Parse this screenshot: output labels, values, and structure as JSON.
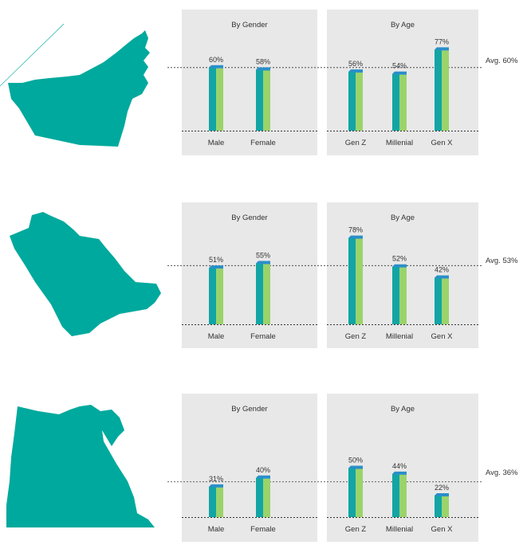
{
  "colors": {
    "panel_bg": "#e8e8e8",
    "bar_dark": "#12a5a5",
    "bar_light": "#9bd36b",
    "bar_top": "#2a8fc9",
    "map_fill": "#00a99d",
    "line": "#333333"
  },
  "chart_data": [
    {
      "type": "bar",
      "country_shape": "UAE",
      "avg_label": "Avg. 60%",
      "avg_value": 60,
      "gender": {
        "title": "By Gender",
        "categories": [
          "Male",
          "Female"
        ],
        "values": [
          60,
          58
        ],
        "labels": [
          "60%",
          "58%"
        ]
      },
      "age": {
        "title": "By Age",
        "categories": [
          "Gen Z",
          "Millenial",
          "Gen X"
        ],
        "values": [
          56,
          54,
          77
        ],
        "labels": [
          "56%",
          "54%",
          "77%"
        ]
      }
    },
    {
      "type": "bar",
      "country_shape": "Saudi Arabia",
      "avg_label": "Avg. 53%",
      "avg_value": 53,
      "gender": {
        "title": "By Gender",
        "categories": [
          "Male",
          "Female"
        ],
        "values": [
          51,
          55
        ],
        "labels": [
          "51%",
          "55%"
        ]
      },
      "age": {
        "title": "By Age",
        "categories": [
          "Gen Z",
          "Millenial",
          "Gen X"
        ],
        "values": [
          78,
          52,
          42
        ],
        "labels": [
          "78%",
          "52%",
          "42%"
        ]
      }
    },
    {
      "type": "bar",
      "country_shape": "Egypt",
      "avg_label": "Avg. 36%",
      "avg_value": 36,
      "gender": {
        "title": "By Gender",
        "categories": [
          "Male",
          "Female"
        ],
        "values": [
          31,
          40
        ],
        "labels": [
          "31%",
          "40%"
        ]
      },
      "age": {
        "title": "By Age",
        "categories": [
          "Gen Z",
          "Millenial",
          "Gen X"
        ],
        "values": [
          50,
          44,
          22
        ],
        "labels": [
          "50%",
          "44%",
          "22%"
        ]
      }
    }
  ]
}
